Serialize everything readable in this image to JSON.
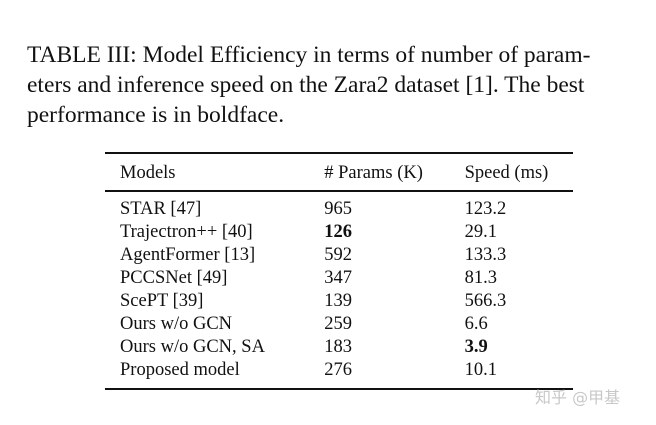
{
  "caption": {
    "lines": [
      "TABLE III: Model Efficiency in terms of number of param-",
      "eters and inference speed on the Zara2 dataset [1]. The best",
      "performance is in boldface."
    ]
  },
  "table": {
    "columns": [
      "Models",
      "# Params (K)",
      "Speed (ms)"
    ],
    "rows": [
      {
        "model": "STAR [47]",
        "params": "965",
        "speed": "123.2",
        "bold_params": false,
        "bold_speed": false
      },
      {
        "model": "Trajectron++ [40]",
        "params": "126",
        "speed": "29.1",
        "bold_params": true,
        "bold_speed": false
      },
      {
        "model": "AgentFormer [13]",
        "params": "592",
        "speed": "133.3",
        "bold_params": false,
        "bold_speed": false
      },
      {
        "model": "PCCSNet [49]",
        "params": "347",
        "speed": "81.3",
        "bold_params": false,
        "bold_speed": false
      },
      {
        "model": "ScePT [39]",
        "params": "139",
        "speed": "566.3",
        "bold_params": false,
        "bold_speed": false
      },
      {
        "model": "Ours w/o GCN",
        "params": "259",
        "speed": "6.6",
        "bold_params": false,
        "bold_speed": false
      },
      {
        "model": "Ours w/o GCN, SA",
        "params": "183",
        "speed": "3.9",
        "bold_params": false,
        "bold_speed": true
      },
      {
        "model": "Proposed model",
        "params": "276",
        "speed": "10.1",
        "bold_params": false,
        "bold_speed": false
      }
    ]
  },
  "watermark": {
    "text": "知乎 @甲基"
  }
}
